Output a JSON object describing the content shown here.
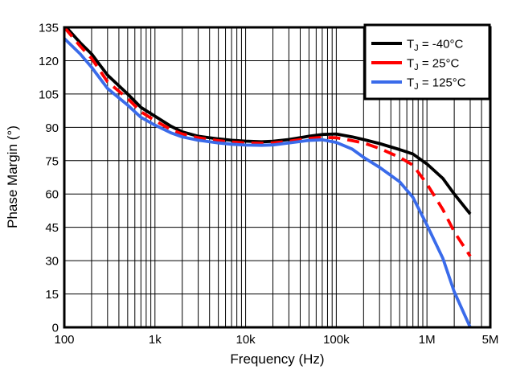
{
  "figure": {
    "background": "#FFFFFF",
    "frame_color": "#000000",
    "grid_color": "#000000"
  },
  "chart_data": {
    "type": "line",
    "title": "",
    "xlabel": "Frequency (Hz)",
    "ylabel": "Phase Margin (°)",
    "x_scale": "log",
    "xlim": [
      100,
      5000000
    ],
    "ylim": [
      0,
      135
    ],
    "grid": true,
    "legend_position": "top-right",
    "x_ticks": [
      {
        "value": 100,
        "label": "100"
      },
      {
        "value": 1000,
        "label": "1k"
      },
      {
        "value": 10000,
        "label": "10k"
      },
      {
        "value": 100000,
        "label": "100k"
      },
      {
        "value": 1000000,
        "label": "1M"
      },
      {
        "value": 5000000,
        "label": "5M"
      }
    ],
    "y_ticks": [
      {
        "value": 0,
        "label": "0"
      },
      {
        "value": 15,
        "label": "15"
      },
      {
        "value": 30,
        "label": "30"
      },
      {
        "value": 45,
        "label": "45"
      },
      {
        "value": 60,
        "label": "60"
      },
      {
        "value": 75,
        "label": "75"
      },
      {
        "value": 90,
        "label": "90"
      },
      {
        "value": 105,
        "label": "105"
      },
      {
        "value": 120,
        "label": "120"
      },
      {
        "value": 135,
        "label": "135"
      }
    ],
    "x": [
      100,
      150,
      200,
      300,
      500,
      700,
      1000,
      1500,
      2000,
      3000,
      5000,
      7000,
      10000,
      15000,
      20000,
      30000,
      50000,
      70000,
      100000,
      150000,
      200000,
      300000,
      500000,
      700000,
      1000000,
      1500000,
      2000000,
      3000000
    ],
    "series": [
      {
        "name": "TJ = -40°C",
        "label_main": "T",
        "label_sub": "J",
        "label_rest": " = -40°C",
        "color": "#000000",
        "dash": null,
        "values": [
          136,
          128,
          123,
          113.5,
          105,
          99,
          95,
          90.5,
          88,
          86,
          84.8,
          84.2,
          83.8,
          83.5,
          83.7,
          84.5,
          86,
          86.8,
          87,
          85.7,
          84.5,
          82.7,
          80,
          78,
          73.5,
          67,
          60,
          51
        ]
      },
      {
        "name": "TJ = 25°C",
        "label_main": "T",
        "label_sub": "J",
        "label_rest": " = 25°C",
        "color": "#FF0000",
        "dash": "15 9",
        "values": [
          135,
          126.5,
          121,
          110.5,
          103,
          97,
          93,
          89,
          87,
          85.3,
          84,
          83.4,
          83,
          82.8,
          83,
          83.7,
          85,
          85.5,
          85.3,
          84,
          83,
          80.5,
          76.5,
          73,
          64.5,
          53,
          43,
          32
        ]
      },
      {
        "name": "TJ = 125°C",
        "label_main": "T",
        "label_sub": "J",
        "label_rest": " = 125°C",
        "color": "#3A6BEA",
        "dash": null,
        "values": [
          130,
          123,
          117,
          107.5,
          100,
          94.5,
          91,
          87.5,
          85.7,
          84.2,
          83,
          82.4,
          82,
          81.9,
          82.1,
          83,
          84.1,
          84.4,
          83.2,
          80.2,
          76.5,
          72,
          65.5,
          58.5,
          46,
          31,
          16,
          0
        ]
      }
    ]
  }
}
